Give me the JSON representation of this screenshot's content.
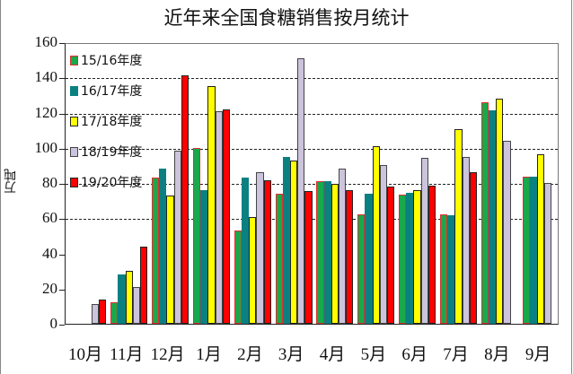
{
  "chart_data": {
    "type": "bar",
    "title": "近年来全国食糖销售按月统计",
    "xlabel": "",
    "ylabel": "万吨",
    "ylim": [
      0,
      160
    ],
    "yticks": [
      0,
      20,
      40,
      60,
      80,
      100,
      120,
      140,
      160
    ],
    "grid": "horizontal dashed (60–140)",
    "legend_position": "upper-left inside plot",
    "categories": [
      "10月",
      "11月",
      "12月",
      "1月",
      "2月",
      "3月",
      "4月",
      "5月",
      "6月",
      "7月",
      "8月",
      "9月"
    ],
    "series": [
      {
        "name": "15/16年度",
        "color": "#1aa84a",
        "edge": "#e03030",
        "values": [
          0,
          12,
          83,
          100,
          53,
          74,
          81,
          62,
          73.5,
          62,
          126,
          83.5
        ]
      },
      {
        "name": "16/17年度",
        "color": "#0b8080",
        "edge": "#0b8080",
        "values": [
          0,
          28,
          88,
          76,
          83,
          95,
          81,
          74,
          74.5,
          61.5,
          121.5,
          83.5
        ]
      },
      {
        "name": "17/18年度",
        "color": "#ffff00",
        "edge": "#222222",
        "values": [
          0,
          30,
          73,
          135,
          60.5,
          93,
          79.5,
          101,
          76,
          110.5,
          128,
          96.5
        ]
      },
      {
        "name": "18/19年度",
        "color": "#ccc4dc",
        "edge": "#444444",
        "values": [
          11,
          21,
          98.5,
          121,
          86,
          151,
          88,
          90,
          94.5,
          95,
          104,
          80
        ]
      },
      {
        "name": "19/20年度",
        "color": "#ff0000",
        "edge": "#222222",
        "values": [
          14,
          44,
          141,
          122,
          81.5,
          75.5,
          76,
          78,
          78.5,
          86,
          null,
          null
        ]
      }
    ]
  }
}
